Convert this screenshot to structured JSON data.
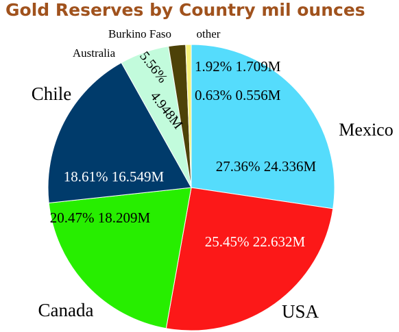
{
  "chart_data": {
    "type": "pie",
    "title": "Gold Reserves by Country mil ounces",
    "slices": [
      {
        "name": "Mexico",
        "value": 24.336,
        "percent": 27.36,
        "value_label": "24.336M",
        "color": "#55dcfc",
        "label_color": "#000000"
      },
      {
        "name": "USA",
        "value": 22.632,
        "percent": 25.45,
        "value_label": "22.632M",
        "color": "#fc1818",
        "label_color": "#ffffff"
      },
      {
        "name": "Canada",
        "value": 18.209,
        "percent": 20.47,
        "value_label": "18.209M",
        "color": "#27ee00",
        "label_color": "#000000"
      },
      {
        "name": "Chile",
        "value": 16.549,
        "percent": 18.61,
        "value_label": "16.549M",
        "color": "#003b6b",
        "label_color": "#ffffff"
      },
      {
        "name": "Australia",
        "value": 4.948,
        "percent": 5.56,
        "value_label": "4.948M",
        "color": "#c2fbdc",
        "label_color": "#000000"
      },
      {
        "name": "Burkino Faso",
        "value": 1.709,
        "percent": 1.92,
        "value_label": "1.709M",
        "color": "#4d4208",
        "label_color": "#000000"
      },
      {
        "name": "other",
        "value": 0.556,
        "percent": 0.63,
        "value_label": "0.556M",
        "color": "#f6f17a",
        "label_color": "#000000"
      }
    ]
  }
}
